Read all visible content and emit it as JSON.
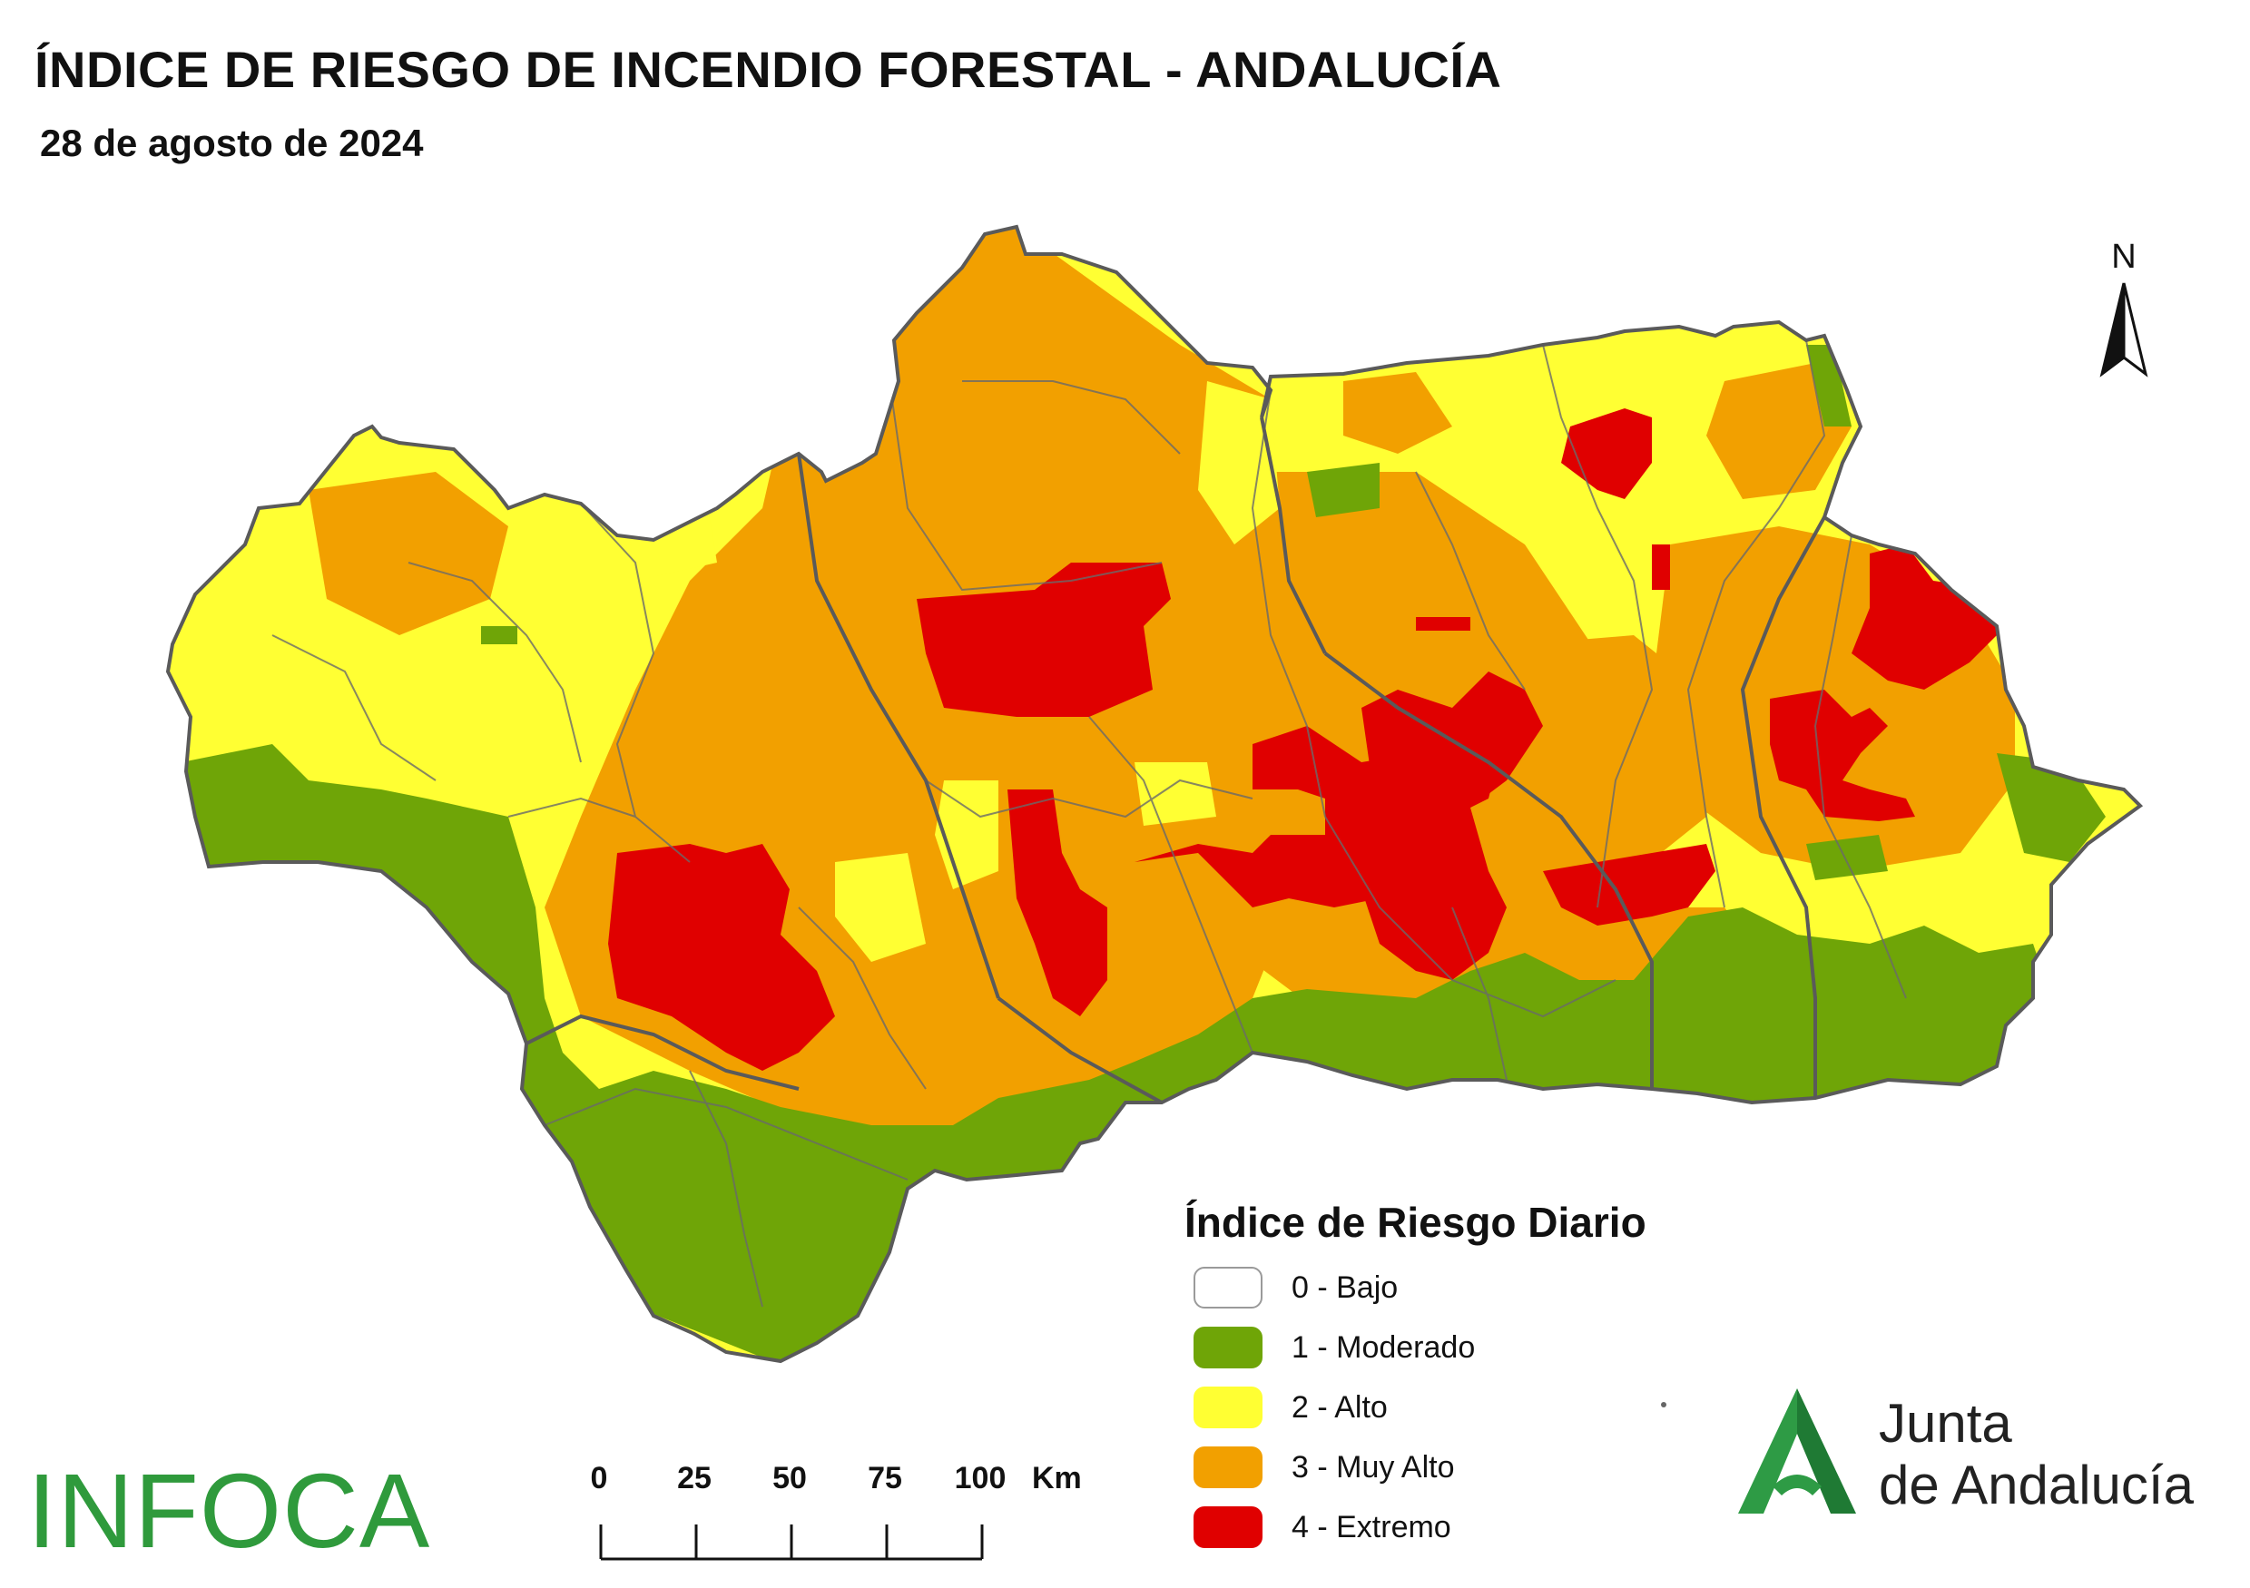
{
  "header": {
    "title": "ÍNDICE DE RIESGO DE INCENDIO FORESTAL - ANDALUCÍA",
    "date": "28 de agosto de 2024"
  },
  "north_arrow": {
    "label": "N"
  },
  "legend": {
    "title": "Índice de Riesgo Diario",
    "items": [
      {
        "label": "0 - Bajo",
        "color": "#ffffff"
      },
      {
        "label": "1 - Moderado",
        "color": "#6fa507"
      },
      {
        "label": "2 - Alto",
        "color": "#ffff33"
      },
      {
        "label": "3 - Muy Alto",
        "color": "#f2a000"
      },
      {
        "label": "4 - Extremo",
        "color": "#e00000"
      }
    ]
  },
  "scale_bar": {
    "ticks": [
      "0",
      "25",
      "50",
      "75",
      "100"
    ],
    "unit": "Km"
  },
  "logos": {
    "left": "INFOCA",
    "right_line1": "Junta",
    "right_line2": "de Andalucía"
  },
  "colors": {
    "moderado": "#6fa507",
    "alto": "#ffff33",
    "muy_alto": "#f2a000",
    "extremo": "#e00000",
    "boundaries": "#5a5a5a",
    "infoca": "#2f9a3c",
    "junta_green": "#1f8a3c"
  }
}
